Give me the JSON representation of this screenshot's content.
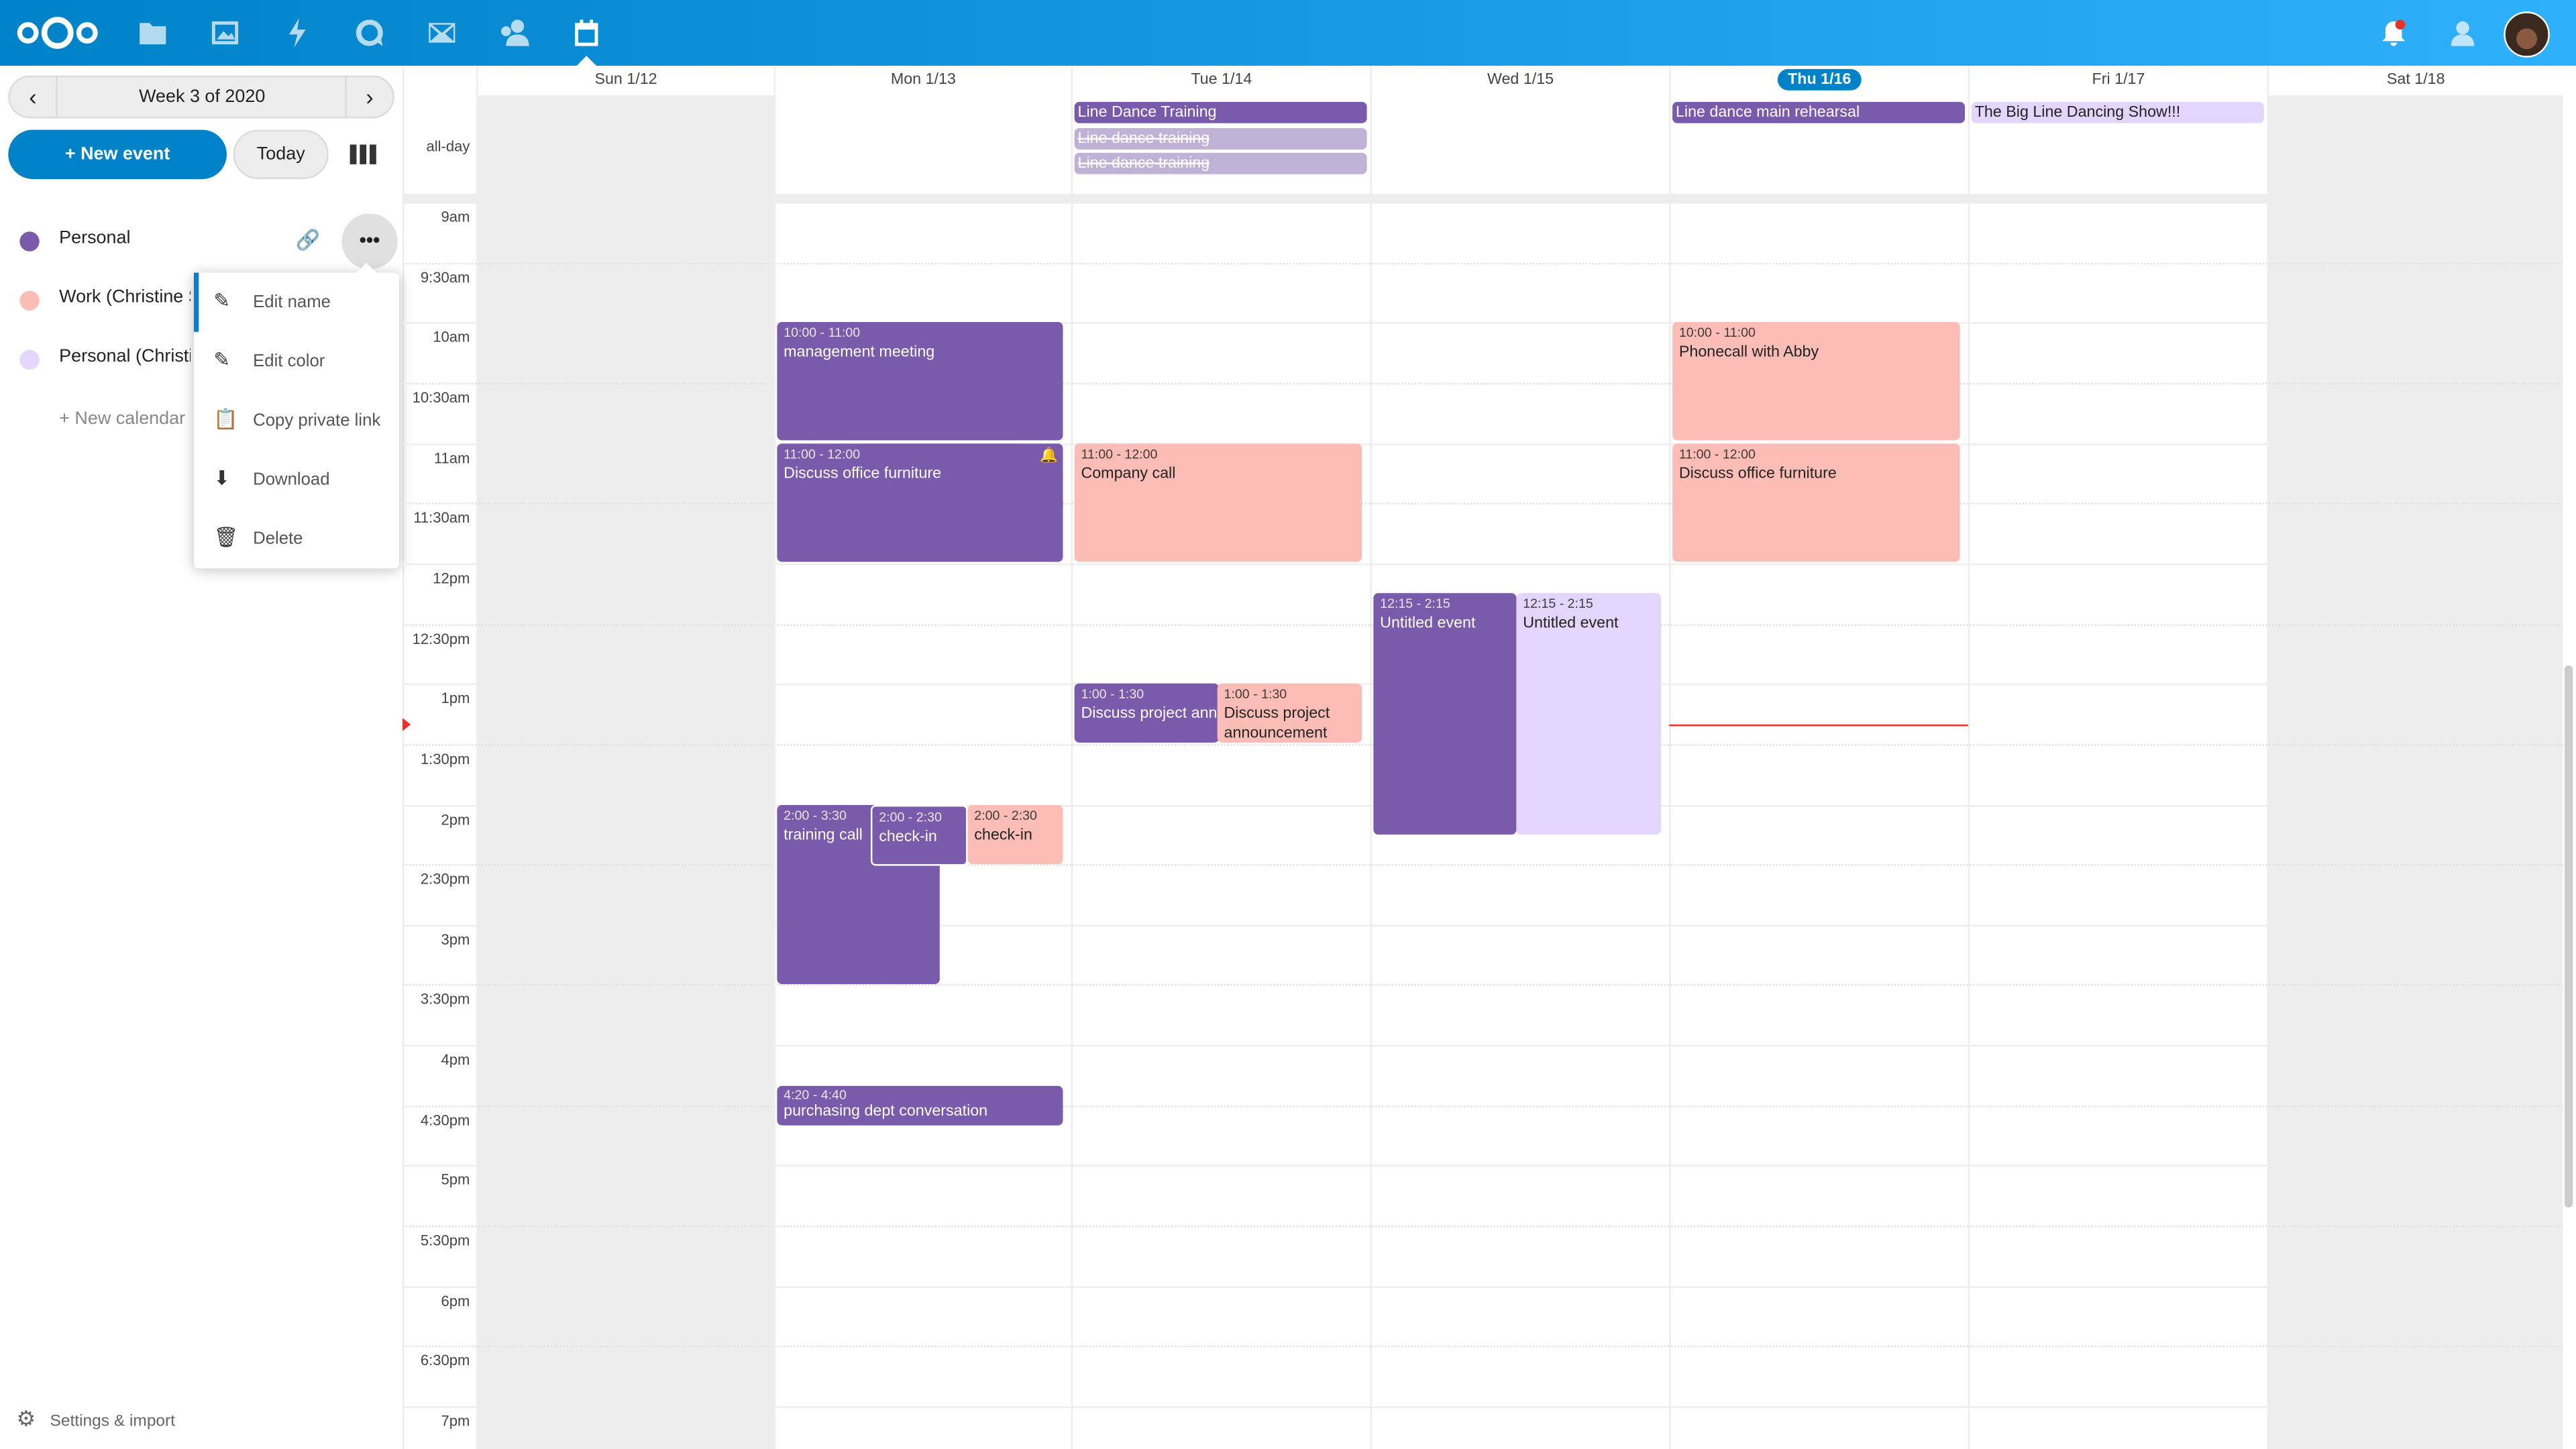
{
  "header": {
    "apps": [
      "logo",
      "files-icon",
      "photos-icon",
      "activity-icon",
      "talk-icon",
      "mail-icon",
      "contacts-icon",
      "calendar-icon"
    ],
    "brand_color": "#0082c9"
  },
  "sidebar": {
    "week_label": "Week 3 of 2020",
    "new_event": "+ New event",
    "today": "Today",
    "calendars": [
      {
        "name": "Personal",
        "color": "#795aab"
      },
      {
        "name": "Work (Christine S",
        "color": "#fcbdb6"
      },
      {
        "name": "Personal (Christi",
        "color": "#e4d5fd"
      }
    ],
    "new_calendar": "+ New calendar",
    "settings": "Settings & import",
    "menu": [
      "Edit name",
      "Edit color",
      "Copy private link",
      "Download",
      "Delete"
    ]
  },
  "calendar": {
    "days": [
      "Sun 1/12",
      "Mon 1/13",
      "Tue 1/14",
      "Wed 1/15",
      "Thu 1/16",
      "Fri 1/17",
      "Sat 1/18"
    ],
    "allday_label": "all-day",
    "times": [
      "9am",
      "9:30am",
      "10am",
      "10:30am",
      "11am",
      "11:30am",
      "12pm",
      "12:30pm",
      "1pm",
      "1:30pm",
      "2pm",
      "2:30pm",
      "3pm",
      "3:30pm",
      "4pm",
      "4:30pm",
      "5pm",
      "5:30pm",
      "6pm",
      "6:30pm",
      "7pm"
    ],
    "allday_events": [
      {
        "title": "Line Dance Training",
        "day": "Tue 1/14"
      },
      {
        "title": "Line dance training",
        "day": "Tue 1/14",
        "cancelled": true
      },
      {
        "title": "Line dance training",
        "day": "Tue 1/14",
        "cancelled": true
      },
      {
        "title": "Line dance main rehearsal",
        "day": "Thu 1/16"
      },
      {
        "title": "The Big Line Dancing Show!!!",
        "day": "Fri 1/17"
      }
    ],
    "events": [
      {
        "time": "10:00 - 11:00",
        "title": "management meeting"
      },
      {
        "time": "11:00 - 12:00",
        "title": "Discuss office furniture"
      },
      {
        "time": "2:00 - 3:30",
        "title": "training call"
      },
      {
        "time": "2:00 - 2:30",
        "title": "check-in"
      },
      {
        "time": "2:00 - 2:30",
        "title": "check-in"
      },
      {
        "time": "4:20 - 4:40",
        "title": "purchasing dept conversation"
      },
      {
        "time": "11:00 - 12:00",
        "title": "Company call"
      },
      {
        "time": "1:00 - 1:30",
        "title": "Discuss project announcement"
      },
      {
        "time": "1:00 - 1:30",
        "title": "Discuss project announcement"
      },
      {
        "time": "12:15 - 2:15",
        "title": "Untitled event"
      },
      {
        "time": "12:15 - 2:15",
        "title": "Untitled event"
      },
      {
        "time": "10:00 - 11:00",
        "title": "Phonecall with Abby"
      },
      {
        "time": "11:00 - 12:00",
        "title": "Discuss office furniture"
      }
    ],
    "current_time_color": "#e9322d"
  }
}
